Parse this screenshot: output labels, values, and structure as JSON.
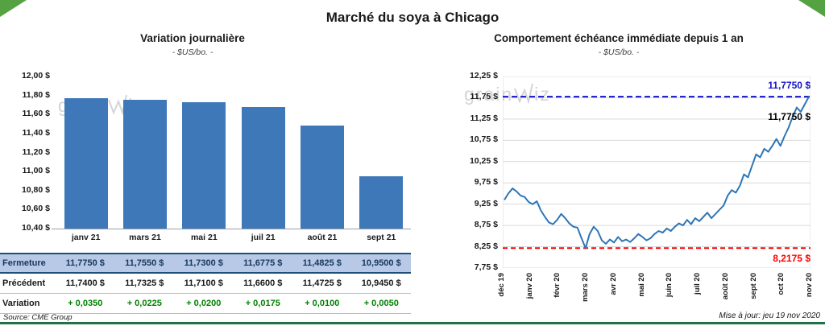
{
  "page": {
    "title": "Marché du soya à Chicago",
    "source": "Source: CME Group",
    "updated": "Mise à jour: jeu 19 nov 2020",
    "watermark": {
      "pre": "grain",
      "post": "iz"
    }
  },
  "colors": {
    "bar": "#3e78b8",
    "line": "#2e75b6",
    "grid": "#d9d9d9",
    "high_annotation": "#1414c8",
    "low_annotation": "#ff0000",
    "last_annotation": "#000000",
    "fermeture_bg": "#b7c9e6",
    "fermeture_text": "#17375e",
    "variation_text": "#008000",
    "accent_green": "#55a243",
    "bottom_rule_green": "#217346"
  },
  "chart_data": [
    {
      "type": "bar",
      "title": "Variation  journalière",
      "subtitle": "- $US/bo. -",
      "categories": [
        "janv 21",
        "mars 21",
        "mai 21",
        "juil 21",
        "août 21",
        "sept 21"
      ],
      "values": [
        11.775,
        11.755,
        11.73,
        11.6775,
        11.4825,
        10.95
      ],
      "ylim": [
        10.4,
        12.0
      ],
      "ytick_step": 0.2,
      "ytick_labels": [
        "12,00 $",
        "11,80 $",
        "11,60 $",
        "11,40 $",
        "11,20 $",
        "11,00 $",
        "10,80 $",
        "10,60 $",
        "10,40 $"
      ],
      "grid": false,
      "legend": "none"
    },
    {
      "type": "line",
      "title": "Comportement  échéance immédiate depuis 1 an",
      "subtitle": "- $US/bo. -",
      "x_labels": [
        "déc 19",
        "janv 20",
        "févr 20",
        "mars 20",
        "avr 20",
        "mai 20",
        "juin 20",
        "juil 20",
        "août 20",
        "sept 20",
        "oct 20",
        "nov 20"
      ],
      "values": [
        9.35,
        9.5,
        9.62,
        9.55,
        9.45,
        9.42,
        9.3,
        9.25,
        9.32,
        9.1,
        8.95,
        8.82,
        8.78,
        8.88,
        9.02,
        8.92,
        8.8,
        8.72,
        8.7,
        8.45,
        8.2175,
        8.55,
        8.72,
        8.62,
        8.4,
        8.32,
        8.42,
        8.35,
        8.48,
        8.38,
        8.42,
        8.36,
        8.45,
        8.55,
        8.48,
        8.4,
        8.45,
        8.55,
        8.62,
        8.58,
        8.68,
        8.62,
        8.72,
        8.8,
        8.75,
        8.88,
        8.78,
        8.92,
        8.85,
        8.95,
        9.05,
        8.92,
        9.02,
        9.12,
        9.22,
        9.45,
        9.58,
        9.52,
        9.68,
        9.95,
        9.88,
        10.15,
        10.42,
        10.35,
        10.55,
        10.48,
        10.62,
        10.78,
        10.62,
        10.85,
        11.05,
        11.3,
        11.52,
        11.42,
        11.6,
        11.775
      ],
      "ylim": [
        7.75,
        12.25
      ],
      "ytick_step": 0.5,
      "ytick_labels": [
        "12,25 $",
        "11,75 $",
        "11,25 $",
        "10,75 $",
        "10,25 $",
        "9,75 $",
        "9,25 $",
        "8,75 $",
        "8,25 $",
        "7,75 $"
      ],
      "grid": true,
      "legend": "none",
      "annotations": {
        "high": {
          "value": 11.775,
          "label": "11,7750 $"
        },
        "last": {
          "value": 11.775,
          "label": "11,7750 $"
        },
        "low": {
          "value": 8.2175,
          "label": "8,2175 $"
        }
      }
    }
  ],
  "table": {
    "rows": [
      {
        "label": "Fermeture",
        "style": "fermeture",
        "values": [
          "11,7750  $",
          "11,7550  $",
          "11,7300  $",
          "11,6775  $",
          "11,4825  $",
          "10,9500  $"
        ]
      },
      {
        "label": "Précédent",
        "style": "precedent",
        "values": [
          "11,7400  $",
          "11,7325  $",
          "11,7100  $",
          "11,6600  $",
          "11,4725  $",
          "10,9450  $"
        ]
      },
      {
        "label": "Variation",
        "style": "variation",
        "values": [
          "+ 0,0350",
          "+ 0,0225",
          "+ 0,0200",
          "+ 0,0175",
          "+ 0,0100",
          "+ 0,0050"
        ]
      }
    ]
  }
}
